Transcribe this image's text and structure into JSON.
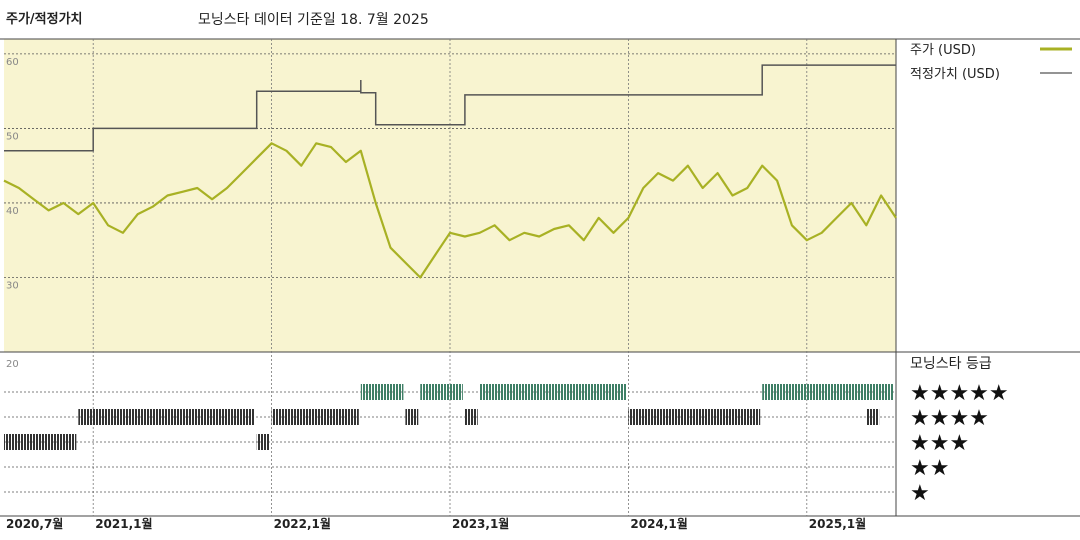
{
  "header": {
    "title": "주가/적정가치",
    "subtitle": "모닝스타 데이터 기준일 18. 7월 2025"
  },
  "colors": {
    "price": "#a8b124",
    "fair_value": "#555555",
    "panel_bg": "#f8f4d0",
    "rating_5": "#3f7f66",
    "rating_4": "#333333",
    "rating_3": "#333333"
  },
  "chart_data": {
    "type": "line",
    "yticks": [
      "60",
      "50",
      "40",
      "30"
    ],
    "ylim": [
      20,
      62
    ],
    "x_tick_labels": [
      "2020,7월",
      "2021,1월",
      "2022,1월",
      "2023,1월",
      "2024,1월",
      "2025,1월"
    ],
    "x_tick_dates": [
      "2020-07",
      "2021-01",
      "2022-01",
      "2023-01",
      "2024-01",
      "2025-01"
    ],
    "x_range": [
      "2020-07",
      "2025-07"
    ],
    "legend": {
      "price": "주가 (USD)",
      "fair_value": "적정가치 (USD)"
    },
    "series": [
      {
        "name": "주가 (USD)",
        "x": [
          "2020-07",
          "2020-08",
          "2020-09",
          "2020-10",
          "2020-11",
          "2020-12",
          "2021-01",
          "2021-02",
          "2021-03",
          "2021-04",
          "2021-05",
          "2021-06",
          "2021-07",
          "2021-08",
          "2021-09",
          "2021-10",
          "2021-11",
          "2021-12",
          "2022-01",
          "2022-02",
          "2022-03",
          "2022-04",
          "2022-05",
          "2022-06",
          "2022-07",
          "2022-08",
          "2022-09",
          "2022-10",
          "2022-11",
          "2022-12",
          "2023-01",
          "2023-02",
          "2023-03",
          "2023-04",
          "2023-05",
          "2023-06",
          "2023-07",
          "2023-08",
          "2023-09",
          "2023-10",
          "2023-11",
          "2023-12",
          "2024-01",
          "2024-02",
          "2024-03",
          "2024-04",
          "2024-05",
          "2024-06",
          "2024-07",
          "2024-08",
          "2024-09",
          "2024-10",
          "2024-11",
          "2024-12",
          "2025-01",
          "2025-02",
          "2025-03",
          "2025-04",
          "2025-05",
          "2025-06",
          "2025-07"
        ],
        "values": [
          43,
          42,
          40.5,
          39,
          40,
          38.5,
          40,
          37,
          36,
          38.5,
          39.5,
          41,
          41.5,
          42,
          40.5,
          42,
          44,
          46,
          48,
          47,
          45,
          48,
          47.5,
          45.5,
          47,
          40,
          34,
          32,
          30,
          33,
          36,
          35.5,
          36,
          37,
          35,
          36,
          35.5,
          36.5,
          37,
          35,
          38,
          36,
          38,
          42,
          44,
          43,
          45,
          42,
          44,
          41,
          42,
          45,
          43,
          37,
          35,
          36,
          38,
          40,
          37,
          41,
          38
        ]
      },
      {
        "name": "적정가치 (USD)",
        "x": [
          "2020-07",
          "2021-01",
          "2021-01",
          "2021-12",
          "2021-12",
          "2022-07",
          "2022-07",
          "2022-07",
          "2022-08",
          "2022-08",
          "2023-02",
          "2023-02",
          "2024-10",
          "2024-10",
          "2025-07"
        ],
        "values": [
          47,
          47,
          50,
          50,
          55,
          55,
          56.5,
          54.8,
          54.8,
          50.5,
          50.5,
          54.5,
          54.5,
          58.5,
          58.5
        ]
      }
    ],
    "rating_title": "모닝스타 등급",
    "ratings": [
      {
        "stars": "★★★★★",
        "value": 5
      },
      {
        "stars": "★★★★",
        "value": 4
      },
      {
        "stars": "★★★",
        "value": 3
      },
      {
        "stars": "★★",
        "value": 2
      },
      {
        "stars": "★",
        "value": 1
      }
    ],
    "rating_lower_label": "20",
    "rating_history": [
      {
        "start": "2020-07",
        "end": "2020-12",
        "value": 3
      },
      {
        "start": "2020-12",
        "end": "2021-12",
        "value": 4
      },
      {
        "start": "2021-12",
        "end": "2022-01",
        "value": 3
      },
      {
        "start": "2022-01",
        "end": "2022-07",
        "value": 4
      },
      {
        "start": "2022-07",
        "end": "2022-10",
        "value": 5
      },
      {
        "start": "2022-10",
        "end": "2022-11",
        "value": 4
      },
      {
        "start": "2022-11",
        "end": "2023-02",
        "value": 5
      },
      {
        "start": "2023-02",
        "end": "2023-03",
        "value": 4
      },
      {
        "start": "2023-03",
        "end": "2024-01",
        "value": 5
      },
      {
        "start": "2024-01",
        "end": "2024-10",
        "value": 4
      },
      {
        "start": "2024-10",
        "end": "2025-07",
        "value": 5
      },
      {
        "start": "2025-05",
        "end": "2025-06",
        "value": 4
      }
    ]
  }
}
